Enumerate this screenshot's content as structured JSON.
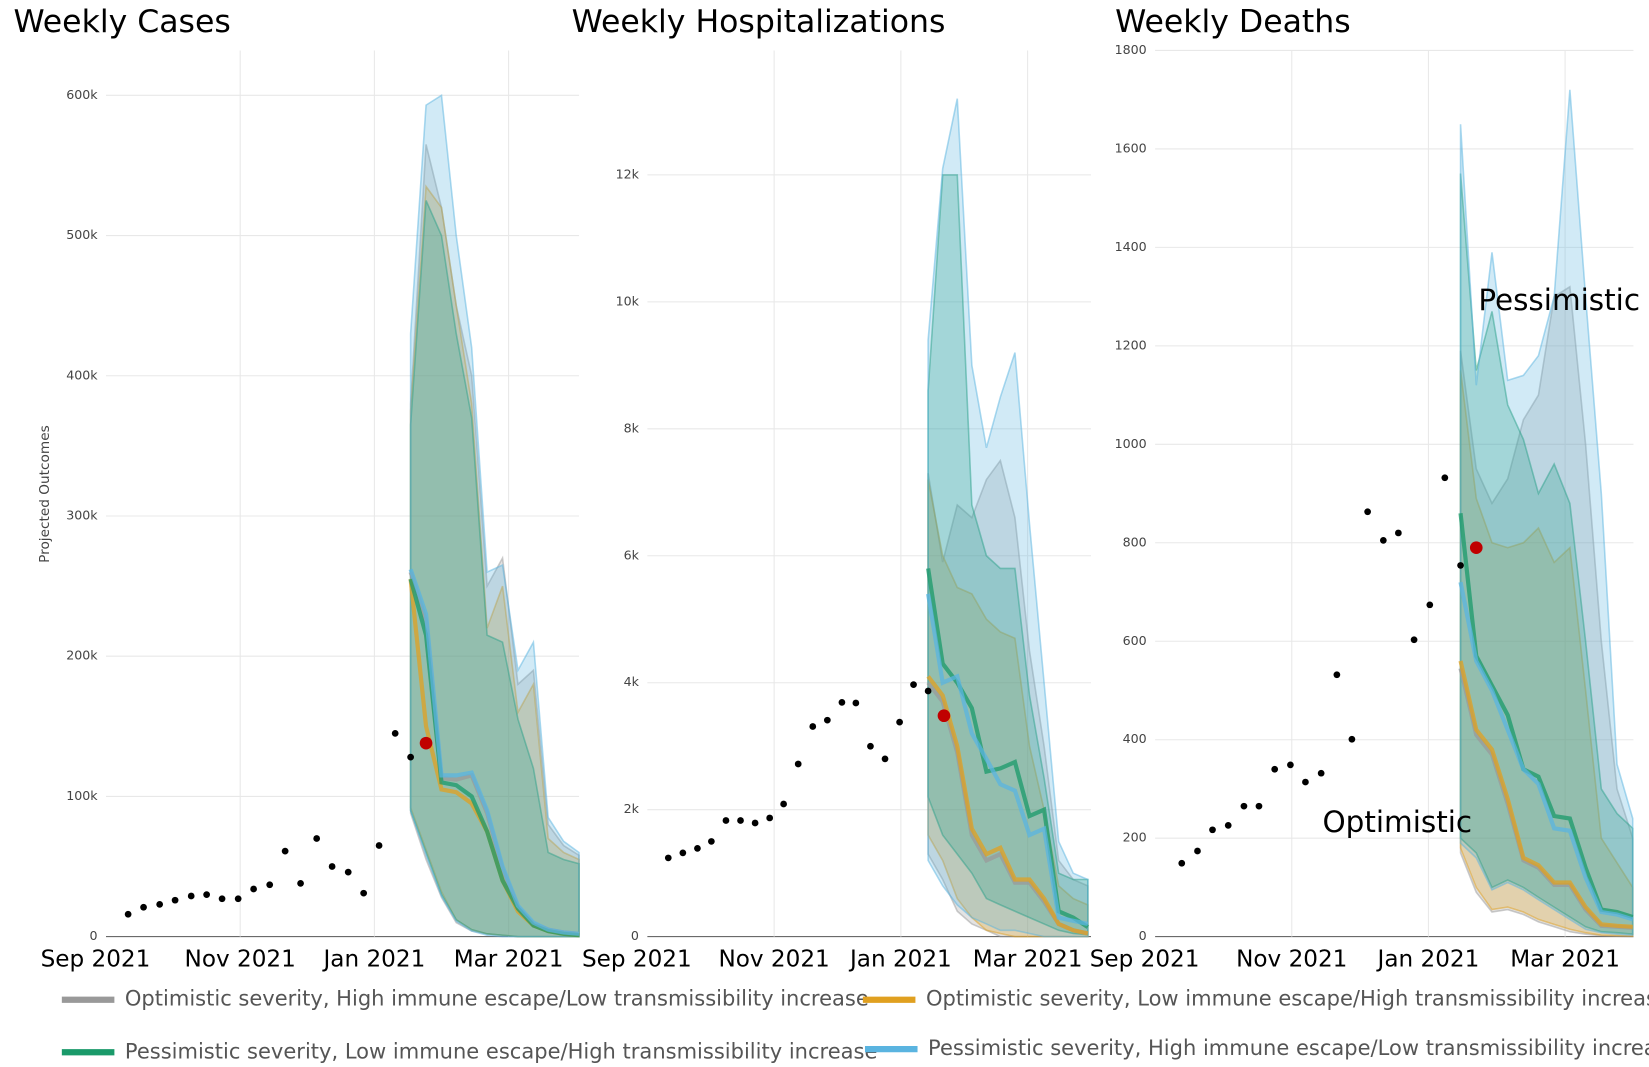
{
  "chart_data": [
    {
      "type": "line",
      "title": "Weekly Cases",
      "y_label": "Projected Outcomes",
      "xlim": [
        0,
        7.05
      ],
      "ylim": [
        0,
        632000
      ],
      "xticks": [
        {
          "value": 0,
          "label": "Sep 2021"
        },
        {
          "value": 2,
          "label": "Nov 2021"
        },
        {
          "value": 4,
          "label": "Jan 2021"
        },
        {
          "value": 6,
          "label": "Mar 2021"
        }
      ],
      "yticks": [
        0,
        {
          "value": 100000,
          "label": "100k"
        },
        {
          "value": 200000,
          "label": "200k"
        },
        {
          "value": 300000,
          "label": "300k"
        },
        {
          "value": 400000,
          "label": "400k"
        },
        {
          "value": 500000,
          "label": "500k"
        },
        {
          "value": 600000,
          "label": "600k"
        }
      ],
      "observed": {
        "color": "#000000",
        "x": [
          0.33,
          0.56,
          0.8,
          1.03,
          1.27,
          1.5,
          1.73,
          1.97,
          2.2,
          2.44,
          2.67,
          2.9,
          3.14,
          3.37,
          3.61,
          3.84,
          4.07,
          4.31,
          4.54
        ],
        "values": [
          16000,
          21000,
          23000,
          26000,
          29000,
          30000,
          27000,
          27000,
          34000,
          37000,
          61000,
          38000,
          70000,
          50000,
          46000,
          31000,
          65000,
          145000,
          128000
        ]
      },
      "highlight": {
        "color": "#c00000",
        "x": 4.77,
        "value": 138000
      },
      "x": [
        4.54,
        4.77,
        5.0,
        5.22,
        5.45,
        5.68,
        5.91,
        6.14,
        6.37,
        6.59,
        6.82,
        7.05
      ],
      "series": [
        {
          "name": "Optimistic severity, High immune escape/Low transmissibility increase",
          "color": "#999999",
          "values": [
            260000,
            225000,
            113000,
            112000,
            115000,
            88000,
            48000,
            21000,
            9000,
            5000,
            3000,
            2000
          ],
          "lower": [
            88000,
            55000,
            28000,
            10000,
            4000,
            2000,
            1000,
            0,
            0,
            0,
            0,
            0
          ],
          "upper": [
            380000,
            565000,
            520000,
            450000,
            400000,
            250000,
            270000,
            180000,
            190000,
            80000,
            65000,
            58000
          ]
        },
        {
          "name": "Optimistic severity, Low immune escape/High transmissibility increase",
          "color": "#e0a020",
          "values": [
            255000,
            150000,
            105000,
            103000,
            95000,
            75000,
            40000,
            18000,
            8000,
            4000,
            2000,
            1000
          ],
          "lower": [
            92000,
            62000,
            32000,
            12000,
            5000,
            2000,
            1000,
            0,
            0,
            0,
            0,
            0
          ],
          "upper": [
            375000,
            535000,
            520000,
            450000,
            380000,
            220000,
            250000,
            160000,
            180000,
            70000,
            60000,
            55000
          ]
        },
        {
          "name": "Pessimistic severity, Low immune escape/High transmissibility increase",
          "color": "#1a9a6a",
          "values": [
            255000,
            215000,
            110000,
            108000,
            100000,
            75000,
            40000,
            20000,
            8000,
            4000,
            2000,
            1000
          ],
          "lower": [
            90000,
            60000,
            30000,
            12000,
            5000,
            2000,
            1000,
            0,
            0,
            0,
            0,
            0
          ],
          "upper": [
            365000,
            525000,
            500000,
            430000,
            370000,
            215000,
            210000,
            155000,
            120000,
            60000,
            55000,
            52000
          ]
        },
        {
          "name": "Pessimistic severity, High immune escape/Low transmissibility increase",
          "color": "#5ab4e0",
          "values": [
            262000,
            230000,
            115000,
            115000,
            117000,
            90000,
            50000,
            22000,
            10000,
            5000,
            3000,
            2000
          ],
          "lower": [
            90000,
            58000,
            29000,
            11000,
            4000,
            1000,
            0,
            0,
            0,
            0,
            0,
            0
          ],
          "upper": [
            430000,
            593000,
            600000,
            500000,
            420000,
            260000,
            265000,
            190000,
            210000,
            85000,
            68000,
            60000
          ]
        }
      ]
    },
    {
      "type": "line",
      "title": "Weekly Hospitalizations",
      "xlim": [
        0,
        7
      ],
      "ylim": [
        0,
        13960
      ],
      "xticks": [
        {
          "value": 0,
          "label": "Sep 2021"
        },
        {
          "value": 2,
          "label": "Nov 2021"
        },
        {
          "value": 4,
          "label": "Jan 2021"
        },
        {
          "value": 6,
          "label": "Mar 2021"
        }
      ],
      "yticks": [
        0,
        {
          "value": 2000,
          "label": "2k"
        },
        {
          "value": 4000,
          "label": "4k"
        },
        {
          "value": 6000,
          "label": "6k"
        },
        {
          "value": 8000,
          "label": "8k"
        },
        {
          "value": 10000,
          "label": "10k"
        },
        {
          "value": 12000,
          "label": "12k"
        }
      ],
      "observed": {
        "color": "#000000",
        "x": [
          0.33,
          0.56,
          0.79,
          1.01,
          1.24,
          1.47,
          1.7,
          1.93,
          2.15,
          2.38,
          2.61,
          2.84,
          3.07,
          3.29,
          3.52,
          3.75,
          3.98,
          4.2,
          4.43
        ],
        "values": [
          1240,
          1320,
          1390,
          1500,
          1830,
          1830,
          1790,
          1870,
          2090,
          2720,
          3310,
          3410,
          3690,
          3680,
          3000,
          2800,
          3380,
          3970,
          3870
        ]
      },
      "highlight": {
        "color": "#c00000",
        "x": 4.68,
        "value": 3480
      },
      "x": [
        4.43,
        4.66,
        4.89,
        5.12,
        5.35,
        5.57,
        5.8,
        6.03,
        6.26,
        6.49,
        6.72,
        6.95
      ],
      "series": [
        {
          "name": "Optimistic severity, High immune escape/Low transmissibility increase",
          "color": "#999999",
          "values": [
            4000,
            3700,
            2900,
            1600,
            1200,
            1300,
            850,
            850,
            550,
            200,
            100,
            50
          ],
          "lower": [
            1300,
            900,
            400,
            200,
            100,
            0,
            0,
            0,
            0,
            0,
            0,
            0
          ],
          "upper": [
            7300,
            5900,
            6800,
            6600,
            7200,
            7500,
            6600,
            4500,
            3000,
            1200,
            900,
            800
          ]
        },
        {
          "name": "Optimistic severity, Low immune escape/High transmissibility increase",
          "color": "#e0a020",
          "values": [
            4100,
            3800,
            3000,
            1700,
            1300,
            1400,
            900,
            900,
            600,
            200,
            100,
            50
          ],
          "lower": [
            1600,
            1200,
            600,
            300,
            100,
            50,
            0,
            0,
            0,
            0,
            0,
            0
          ],
          "upper": [
            7200,
            6000,
            5500,
            5400,
            5000,
            4800,
            4700,
            3000,
            2000,
            800,
            600,
            500
          ]
        },
        {
          "name": "Pessimistic severity, Low immune escape/High transmissibility increase",
          "color": "#1a9a6a",
          "values": [
            5800,
            4300,
            4000,
            3600,
            2600,
            2650,
            2750,
            1900,
            2000,
            400,
            300,
            150
          ],
          "lower": [
            2200,
            1600,
            1300,
            1000,
            600,
            500,
            400,
            300,
            200,
            100,
            50,
            30
          ],
          "upper": [
            8600,
            12000,
            12000,
            6800,
            6000,
            5800,
            5800,
            3800,
            2500,
            1000,
            900,
            900
          ]
        },
        {
          "name": "Pessimistic severity, High immune escape/Low transmissibility increase",
          "color": "#5ab4e0",
          "values": [
            5400,
            4000,
            4100,
            3200,
            2800,
            2400,
            2300,
            1600,
            1700,
            300,
            250,
            200
          ],
          "lower": [
            1200,
            800,
            500,
            300,
            200,
            100,
            100,
            50,
            0,
            0,
            0,
            0
          ],
          "upper": [
            9400,
            12100,
            13200,
            9000,
            7700,
            8500,
            9200,
            6500,
            4000,
            1500,
            1000,
            900
          ]
        }
      ]
    },
    {
      "type": "line",
      "title": "Weekly Deaths",
      "xlim": [
        0,
        7
      ],
      "ylim": [
        0,
        1800
      ],
      "xticks": [
        {
          "value": 0,
          "label": "Sep 2021"
        },
        {
          "value": 2,
          "label": "Nov 2021"
        },
        {
          "value": 4,
          "label": "Jan 2021"
        },
        {
          "value": 6,
          "label": "Mar 2021"
        }
      ],
      "yticks": [
        0,
        200,
        400,
        600,
        800,
        1000,
        1200,
        1400,
        1600,
        1800
      ],
      "annotations": [
        {
          "text": "Pessimistic",
          "x": 4.73,
          "y": 1290
        },
        {
          "text": "Optimistic",
          "x": 2.45,
          "y": 230
        }
      ],
      "observed": {
        "color": "#000000",
        "x": [
          0.39,
          0.62,
          0.84,
          1.07,
          1.3,
          1.52,
          1.75,
          1.98,
          2.2,
          2.43,
          2.66,
          2.88,
          3.11,
          3.34,
          3.56,
          3.79,
          4.02,
          4.24,
          4.47
        ],
        "values": [
          149,
          174,
          217,
          226,
          265,
          265,
          340,
          349,
          314,
          332,
          532,
          401,
          863,
          805,
          820,
          603,
          674,
          932,
          754
        ]
      },
      "highlight": {
        "color": "#c00000",
        "x": 4.7,
        "value": 790
      },
      "x": [
        4.47,
        4.7,
        4.93,
        5.16,
        5.39,
        5.61,
        5.84,
        6.07,
        6.3,
        6.53,
        6.76,
        6.99
      ],
      "series": [
        {
          "name": "Optimistic severity, High immune escape/Low transmissibility increase",
          "color": "#999999",
          "values": [
            545,
            410,
            370,
            270,
            155,
            140,
            105,
            105,
            55,
            22,
            20,
            18
          ],
          "lower": [
            170,
            90,
            50,
            55,
            45,
            30,
            20,
            10,
            5,
            2,
            1,
            0
          ],
          "upper": [
            1190,
            950,
            880,
            930,
            1050,
            1100,
            1300,
            1320,
            1000,
            600,
            300,
            200
          ]
        },
        {
          "name": "Optimistic severity, Low immune escape/High transmissibility increase",
          "color": "#e0a020",
          "values": [
            560,
            420,
            380,
            280,
            160,
            145,
            110,
            110,
            60,
            25,
            22,
            20
          ],
          "lower": [
            180,
            100,
            55,
            60,
            50,
            35,
            25,
            15,
            8,
            3,
            2,
            1
          ],
          "upper": [
            1150,
            890,
            800,
            790,
            800,
            830,
            760,
            790,
            500,
            200,
            150,
            100
          ]
        },
        {
          "name": "Pessimistic severity, Low immune escape/High transmissibility increase",
          "color": "#1a9a6a",
          "values": [
            860,
            570,
            510,
            450,
            340,
            325,
            245,
            240,
            140,
            55,
            50,
            40
          ],
          "lower": [
            200,
            170,
            100,
            115,
            100,
            80,
            60,
            40,
            20,
            10,
            8,
            5
          ],
          "upper": [
            1550,
            1150,
            1270,
            1080,
            1010,
            900,
            960,
            880,
            600,
            300,
            250,
            220
          ]
        },
        {
          "name": "Pessimistic severity, High immune escape/Low transmissibility increase",
          "color": "#5ab4e0",
          "values": [
            720,
            560,
            500,
            420,
            340,
            310,
            220,
            215,
            120,
            50,
            45,
            35
          ],
          "lower": [
            190,
            160,
            95,
            110,
            95,
            75,
            55,
            35,
            15,
            8,
            5,
            3
          ],
          "upper": [
            1650,
            1120,
            1390,
            1130,
            1140,
            1180,
            1300,
            1720,
            1300,
            900,
            350,
            240
          ]
        }
      ]
    }
  ]
}
